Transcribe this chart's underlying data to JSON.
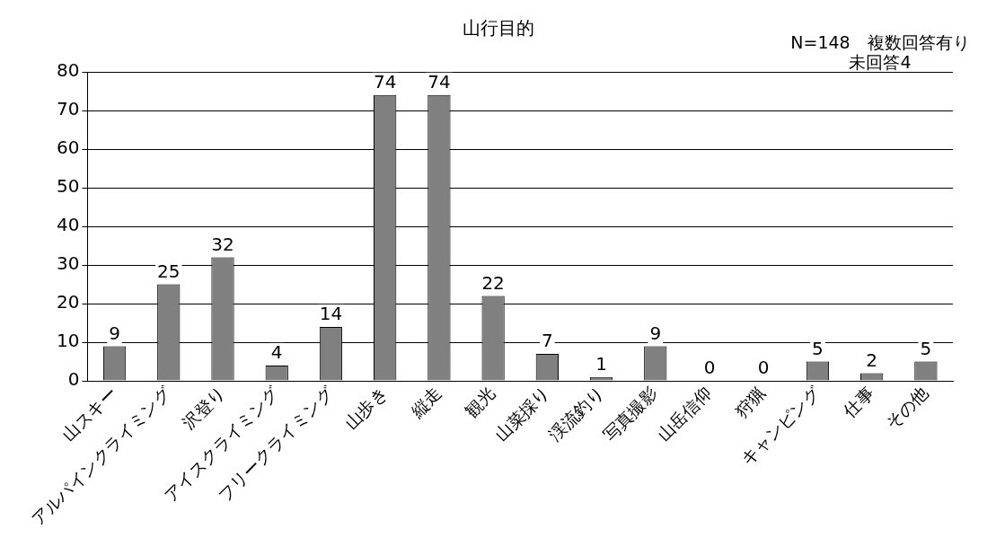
{
  "chart_data": {
    "type": "bar",
    "title": "山行目的",
    "annotations": [
      "N=148　複数回答有り",
      "未回答4"
    ],
    "categories": [
      "山スキー",
      "アルパインクライミング",
      "沢登り",
      "アイスクライミング",
      "フリークライミング",
      "山歩き",
      "縦走",
      "観光",
      "山菜採り",
      "渓流釣り",
      "写真撮影",
      "山岳信仰",
      "狩猟",
      "キャンピング",
      "仕事",
      "その他"
    ],
    "values": [
      9,
      25,
      32,
      4,
      14,
      74,
      74,
      22,
      7,
      1,
      9,
      0,
      0,
      5,
      2,
      5
    ],
    "color": "#808080",
    "ylim": [
      0,
      80
    ],
    "yticks": [
      0,
      10,
      20,
      30,
      40,
      50,
      60,
      70,
      80
    ],
    "grid": "y",
    "data_labels": true
  }
}
